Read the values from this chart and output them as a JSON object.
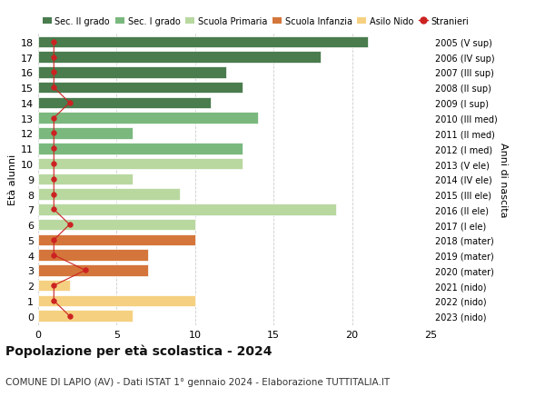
{
  "ages": [
    18,
    17,
    16,
    15,
    14,
    13,
    12,
    11,
    10,
    9,
    8,
    7,
    6,
    5,
    4,
    3,
    2,
    1,
    0
  ],
  "right_labels": [
    "2005 (V sup)",
    "2006 (IV sup)",
    "2007 (III sup)",
    "2008 (II sup)",
    "2009 (I sup)",
    "2010 (III med)",
    "2011 (II med)",
    "2012 (I med)",
    "2013 (V ele)",
    "2014 (IV ele)",
    "2015 (III ele)",
    "2016 (II ele)",
    "2017 (I ele)",
    "2018 (mater)",
    "2019 (mater)",
    "2020 (mater)",
    "2021 (nido)",
    "2022 (nido)",
    "2023 (nido)"
  ],
  "bar_values": [
    21,
    18,
    12,
    13,
    11,
    14,
    6,
    13,
    13,
    6,
    9,
    19,
    10,
    10,
    7,
    7,
    2,
    10,
    6
  ],
  "bar_colors": [
    "#4a7c4e",
    "#4a7c4e",
    "#4a7c4e",
    "#4a7c4e",
    "#4a7c4e",
    "#7ab87e",
    "#7ab87e",
    "#7ab87e",
    "#b8d8a0",
    "#b8d8a0",
    "#b8d8a0",
    "#b8d8a0",
    "#b8d8a0",
    "#d4763b",
    "#d4763b",
    "#d4763b",
    "#f5d080",
    "#f5d080",
    "#f5d080"
  ],
  "stranieri_x": [
    1,
    1,
    1,
    1,
    2,
    1,
    1,
    1,
    1,
    1,
    1,
    1,
    2,
    1,
    1,
    3,
    1,
    1,
    2
  ],
  "legend_labels": [
    "Sec. II grado",
    "Sec. I grado",
    "Scuola Primaria",
    "Scuola Infanzia",
    "Asilo Nido",
    "Stranieri"
  ],
  "legend_colors": [
    "#4a7c4e",
    "#7ab87e",
    "#b8d8a0",
    "#d4763b",
    "#f5d080",
    "#cc2222"
  ],
  "title_bold": "Popolazione per età scolastica - 2024",
  "subtitle": "COMUNE DI LAPIO (AV) - Dati ISTAT 1° gennaio 2024 - Elaborazione TUTTITALIA.IT",
  "ylabel": "Età alunni",
  "right_ylabel": "Anni di nascita",
  "xlim": [
    0,
    25
  ],
  "xticks": [
    0,
    5,
    10,
    15,
    20,
    25
  ],
  "background_color": "#ffffff",
  "grid_color": "#cccccc",
  "bar_edge_color": "#ffffff"
}
